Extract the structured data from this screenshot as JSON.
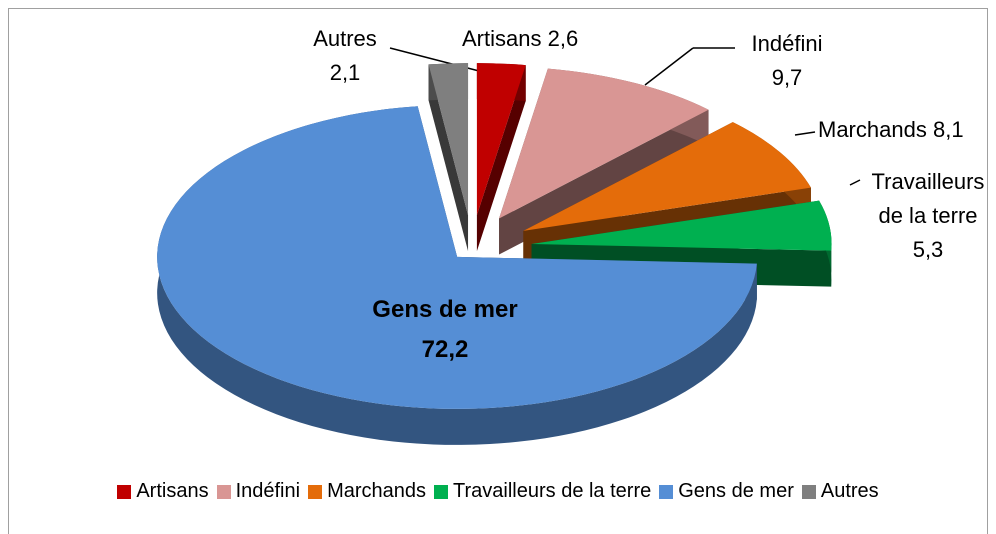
{
  "chart_data": {
    "type": "pie",
    "categories": [
      "Artisans",
      "Indéfini",
      "Marchands",
      "Travailleurs de la terre",
      "Gens de mer",
      "Autres"
    ],
    "values": [
      2.6,
      9.7,
      8.1,
      5.3,
      72.2,
      2.1
    ],
    "value_labels": [
      "2,6",
      "9,7",
      "8,1",
      "5,3",
      "72,2",
      "2,1"
    ],
    "colors": [
      "#c00000",
      "#d99694",
      "#e46c0a",
      "#00b050",
      "#558ed5",
      "#7f7f7f"
    ],
    "legend": "bottom"
  }
}
